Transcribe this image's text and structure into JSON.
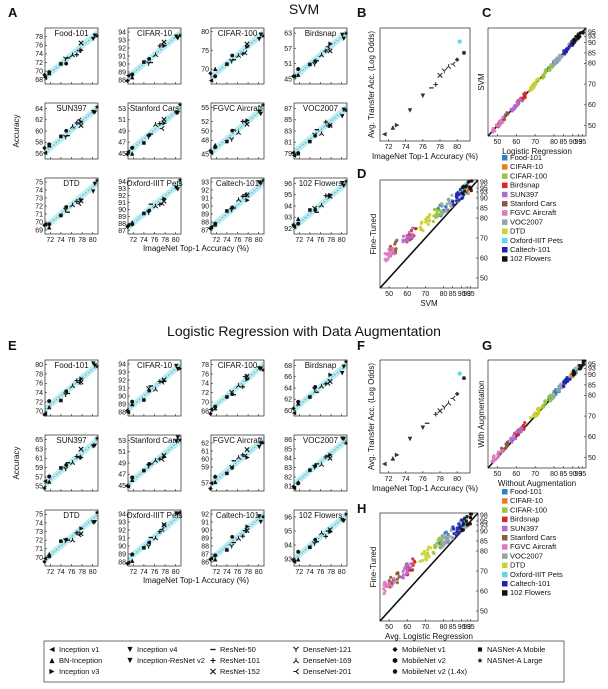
{
  "titles": {
    "svm": "SVM",
    "aug": "Logistic Regression with Data Augmentation"
  },
  "panel_letters": [
    "A",
    "B",
    "C",
    "D",
    "E",
    "F",
    "G",
    "H"
  ],
  "chart_data": [
    {
      "type": "scatter",
      "panel": "A",
      "ylabel": "Accuracy",
      "xlabel": "ImageNet Top-1 Accuracy (%)",
      "x_ticks": [
        72,
        74,
        76,
        78,
        80
      ],
      "xlim": [
        71,
        81
      ],
      "subplots": [
        {
          "title": "Food-101",
          "yticks": [
            68,
            70,
            72,
            74,
            76,
            78
          ],
          "ylim": [
            67,
            80
          ]
        },
        {
          "title": "CIFAR-10",
          "yticks": [
            88,
            89,
            90,
            91,
            92,
            93,
            94
          ],
          "ylim": [
            87.5,
            94.5
          ]
        },
        {
          "title": "CIFAR-100",
          "yticks": [
            70,
            75,
            80
          ],
          "ylim": [
            66,
            81
          ]
        },
        {
          "title": "Birdsnap",
          "yticks": [
            45,
            51,
            57,
            63
          ],
          "ylim": [
            43,
            65
          ]
        },
        {
          "title": "SUN397",
          "yticks": [
            56,
            58,
            60,
            62,
            64
          ],
          "ylim": [
            55,
            65
          ]
        },
        {
          "title": "Stanford Cars",
          "yticks": [
            45,
            47,
            49,
            51,
            53
          ],
          "ylim": [
            44,
            54
          ]
        },
        {
          "title": "FGVC Aircraft",
          "yticks": [
            45,
            48,
            50,
            52,
            55
          ],
          "ylim": [
            44,
            56
          ]
        },
        {
          "title": "VOC2007",
          "yticks": [
            79,
            81,
            83,
            85,
            87
          ],
          "ylim": [
            78,
            88
          ]
        },
        {
          "title": "DTD",
          "yticks": [
            69,
            70,
            71,
            72,
            73,
            74,
            75
          ],
          "ylim": [
            68.5,
            75.5
          ]
        },
        {
          "title": "Oxford-IIIT Pets",
          "yticks": [
            87,
            88,
            89,
            90,
            91,
            92,
            93,
            94
          ],
          "ylim": [
            86.5,
            94.5
          ]
        },
        {
          "title": "Caltech-101",
          "yticks": [
            87,
            88,
            89,
            90,
            91,
            92,
            93
          ],
          "ylim": [
            86.5,
            93.5
          ]
        },
        {
          "title": "102 Flowers",
          "yticks": [
            92,
            93,
            94,
            95,
            96
          ],
          "ylim": [
            91.5,
            96.5
          ]
        }
      ]
    },
    {
      "type": "scatter",
      "panel": "B",
      "xlabel": "ImageNet Top-1 Accuracy (%)",
      "ylabel": "Avg. Transfer Acc. (Log Odds)",
      "x_ticks": [
        72,
        74,
        76,
        78,
        80
      ],
      "xlim": [
        71,
        81.5
      ],
      "ylim": [
        0,
        1
      ],
      "points": [
        [
          71.5,
          0.06
        ],
        [
          72.5,
          0.12
        ],
        [
          73,
          0.14
        ],
        [
          74.5,
          0.27
        ],
        [
          76,
          0.4
        ],
        [
          77,
          0.47
        ],
        [
          77.5,
          0.5
        ],
        [
          78,
          0.58
        ],
        [
          78.5,
          0.62
        ],
        [
          79,
          0.66
        ],
        [
          79.5,
          0.68
        ],
        [
          80,
          0.72
        ],
        [
          80.3,
          0.88
        ],
        [
          80.8,
          0.78
        ]
      ]
    },
    {
      "type": "scatter",
      "panel": "C",
      "xlabel": "Logistic Regression",
      "ylabel": "SVM",
      "x_ticks": [
        50,
        60,
        70,
        80,
        85,
        90,
        93,
        95
      ],
      "y_ticks": [
        50,
        60,
        70,
        80,
        85,
        90,
        93,
        95
      ],
      "lim": [
        45,
        97
      ]
    },
    {
      "type": "scatter",
      "panel": "D",
      "xlabel": "SVM",
      "ylabel": "Fine-Tuned",
      "x_ticks": [
        50,
        60,
        70,
        80,
        85,
        90,
        93,
        95
      ],
      "y_ticks": [
        50,
        60,
        70,
        80,
        85,
        90,
        93,
        95,
        98
      ],
      "lim": [
        45,
        99
      ]
    },
    {
      "type": "scatter",
      "panel": "E",
      "ylabel": "Accuracy",
      "xlabel": "ImageNet Top-1 Accuracy (%)",
      "x_ticks": [
        72,
        74,
        76,
        78,
        80
      ],
      "xlim": [
        71,
        81
      ],
      "subplots": [
        {
          "title": "Food-101",
          "yticks": [
            70,
            72,
            74,
            76,
            78,
            80
          ],
          "ylim": [
            69,
            81
          ]
        },
        {
          "title": "CIFAR-10",
          "yticks": [
            88,
            89,
            90,
            91,
            92,
            93,
            94
          ],
          "ylim": [
            87.5,
            94.5
          ]
        },
        {
          "title": "CIFAR-100",
          "yticks": [
            68,
            70,
            72,
            74,
            76,
            78
          ],
          "ylim": [
            67,
            79
          ]
        },
        {
          "title": "Birdsnap",
          "yticks": [
            60,
            62,
            64,
            66,
            68
          ],
          "ylim": [
            59,
            69
          ]
        },
        {
          "title": "SUN397",
          "yticks": [
            55,
            57,
            59,
            61,
            63,
            65
          ],
          "ylim": [
            54,
            66
          ]
        },
        {
          "title": "Stanford Cars",
          "yticks": [
            45,
            47,
            49,
            51,
            53
          ],
          "ylim": [
            44,
            54
          ]
        },
        {
          "title": "FGVC Aircraft",
          "yticks": [
            57,
            59,
            60,
            61,
            62
          ],
          "ylim": [
            56,
            63
          ]
        },
        {
          "title": "VOC2007",
          "yticks": [
            81,
            82,
            83,
            84,
            85,
            86
          ],
          "ylim": [
            80.5,
            86.5
          ]
        },
        {
          "title": "DTD",
          "yticks": [
            70,
            71,
            72,
            73,
            74,
            75
          ],
          "ylim": [
            69,
            75.5
          ]
        },
        {
          "title": "Oxford-IIIT Pets",
          "yticks": [
            88,
            89,
            90,
            91,
            92,
            93,
            94
          ],
          "ylim": [
            87.5,
            94.5
          ]
        },
        {
          "title": "Caltech-101",
          "yticks": [
            86,
            87,
            88,
            89,
            90,
            91,
            92
          ],
          "ylim": [
            85.5,
            92.5
          ]
        },
        {
          "title": "102 Flowers",
          "yticks": [
            93,
            94,
            95,
            96
          ],
          "ylim": [
            92.5,
            96.5
          ]
        }
      ]
    },
    {
      "type": "scatter",
      "panel": "F",
      "xlabel": "ImageNet Top-1 Accuracy (%)",
      "ylabel": "Avg. Transfer Acc. (Log Odds)",
      "x_ticks": [
        72,
        74,
        76,
        78,
        80
      ],
      "xlim": [
        71,
        81.5
      ],
      "ylim": [
        0,
        1
      ],
      "points": [
        [
          71.5,
          0.08
        ],
        [
          72.5,
          0.13
        ],
        [
          73,
          0.16
        ],
        [
          74.5,
          0.3
        ],
        [
          76,
          0.4
        ],
        [
          76.5,
          0.44
        ],
        [
          77.5,
          0.52
        ],
        [
          78,
          0.55
        ],
        [
          78.5,
          0.58
        ],
        [
          79,
          0.62
        ],
        [
          79.5,
          0.66
        ],
        [
          80,
          0.7
        ],
        [
          80.3,
          0.88
        ],
        [
          80.8,
          0.84
        ]
      ]
    },
    {
      "type": "scatter",
      "panel": "G",
      "xlabel": "Without Augmentation",
      "ylabel": "With Augmentation",
      "x_ticks": [
        50,
        60,
        70,
        80,
        85,
        90,
        93,
        95
      ],
      "y_ticks": [
        50,
        60,
        70,
        80,
        85,
        90,
        93,
        95
      ],
      "lim": [
        45,
        97
      ]
    },
    {
      "type": "scatter",
      "panel": "H",
      "xlabel": "Avg. Logistic Regression",
      "ylabel": "Fine-Tuned",
      "x_ticks": [
        50,
        60,
        70,
        80,
        85,
        90,
        93,
        95
      ],
      "y_ticks": [
        50,
        60,
        70,
        80,
        85,
        90,
        93,
        95,
        98
      ],
      "lim": [
        45,
        99
      ]
    }
  ],
  "datasets": [
    {
      "name": "Food-101",
      "color": "#2f7fc1",
      "v": 83
    },
    {
      "name": "CIFAR-10",
      "color": "#ee7a22",
      "v": 94
    },
    {
      "name": "CIFAR-100",
      "color": "#9bc63b",
      "v": 80
    },
    {
      "name": "Birdsnap",
      "color": "#d62728",
      "v": 65
    },
    {
      "name": "SUN397",
      "color": "#b36ad0",
      "v": 63
    },
    {
      "name": "Stanford Cars",
      "color": "#8a5a44",
      "v": 56
    },
    {
      "name": "FGVC Aircraft",
      "color": "#e377c2",
      "v": 53
    },
    {
      "name": "VOC2007",
      "color": "#9aa3ad",
      "v": 85
    },
    {
      "name": "DTD",
      "color": "#c8d330",
      "v": 73
    },
    {
      "name": "Oxford-IIIT Pets",
      "color": "#5fd7e8",
      "v": 93
    },
    {
      "name": "Caltech-101",
      "color": "#2222aa",
      "v": 91
    },
    {
      "name": "102 Flowers",
      "color": "#111111",
      "v": 96
    }
  ],
  "models": [
    {
      "name": "Inception v1",
      "marker": "tri-left"
    },
    {
      "name": "BN-Inception",
      "marker": "tri-up"
    },
    {
      "name": "Inception v3",
      "marker": "tri-right"
    },
    {
      "name": "Inception v4",
      "marker": "tri-down"
    },
    {
      "name": "Inception-ResNet v2",
      "marker": "tri-down2"
    },
    {
      "name": "ResNet-50",
      "marker": "dash"
    },
    {
      "name": "ResNet-101",
      "marker": "plus"
    },
    {
      "name": "ResNet-152",
      "marker": "cross"
    },
    {
      "name": "DenseNet-121",
      "marker": "y"
    },
    {
      "name": "DenseNet-169",
      "marker": "ydown"
    },
    {
      "name": "DenseNet-201",
      "marker": "ytri"
    },
    {
      "name": "MobileNet v1",
      "marker": "diamond"
    },
    {
      "name": "MobileNet v2",
      "marker": "hexagon"
    },
    {
      "name": "MobileNet v2 (1.4x)",
      "marker": "circle"
    },
    {
      "name": "NASNet-A Mobile",
      "marker": "square"
    },
    {
      "name": "NASNet-A Large",
      "marker": "star"
    }
  ]
}
